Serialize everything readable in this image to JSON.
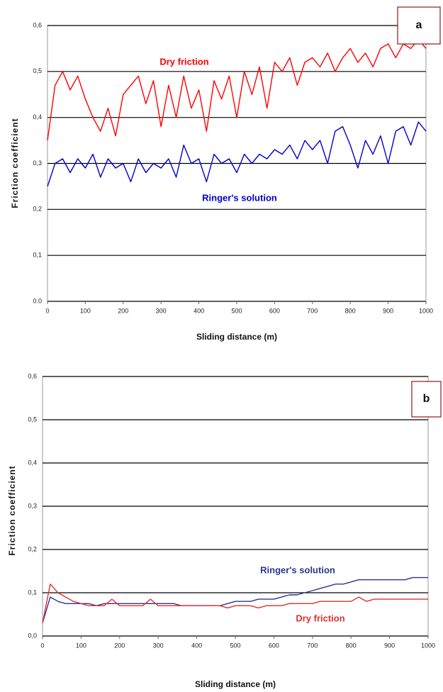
{
  "chart_data": [
    {
      "type": "line",
      "panel_label": "a",
      "xlabel": "Sliding distance (m)",
      "ylabel": "Friction coefficient",
      "xlim": [
        0,
        1000
      ],
      "xticks": [
        0,
        100,
        200,
        300,
        400,
        500,
        600,
        700,
        800,
        900,
        1000
      ],
      "ylim": [
        0,
        0.6
      ],
      "yticks": [
        {
          "value": 0,
          "label": "0.0"
        },
        {
          "value": 0.1,
          "label": "0,1"
        },
        {
          "value": 0.2,
          "label": "0,2"
        },
        {
          "value": 0.3,
          "label": "0,3"
        },
        {
          "value": 0.4,
          "label": "0,4"
        },
        {
          "value": 0.5,
          "label": "0,5"
        },
        {
          "value": 0.6,
          "label": "0,6"
        }
      ],
      "grid": true,
      "x": [
        0,
        20,
        40,
        60,
        80,
        100,
        120,
        140,
        160,
        180,
        200,
        220,
        240,
        260,
        280,
        300,
        320,
        340,
        360,
        380,
        400,
        420,
        440,
        460,
        480,
        500,
        520,
        540,
        560,
        580,
        600,
        620,
        640,
        660,
        680,
        700,
        720,
        740,
        760,
        780,
        800,
        820,
        840,
        860,
        880,
        900,
        920,
        940,
        960,
        980,
        1000
      ],
      "series": [
        {
          "name": "Dry friction",
          "color": "#ff0000",
          "values": [
            0.35,
            0.47,
            0.5,
            0.46,
            0.49,
            0.44,
            0.4,
            0.37,
            0.42,
            0.36,
            0.45,
            0.47,
            0.49,
            0.43,
            0.48,
            0.38,
            0.47,
            0.4,
            0.49,
            0.42,
            0.46,
            0.37,
            0.48,
            0.44,
            0.49,
            0.4,
            0.5,
            0.45,
            0.51,
            0.42,
            0.52,
            0.5,
            0.53,
            0.47,
            0.52,
            0.53,
            0.51,
            0.54,
            0.5,
            0.53,
            0.55,
            0.52,
            0.54,
            0.51,
            0.55,
            0.56,
            0.53,
            0.56,
            0.55,
            0.57,
            0.55
          ]
        },
        {
          "name": "Ringer's solution",
          "color": "#0000cc",
          "values": [
            0.25,
            0.3,
            0.31,
            0.28,
            0.31,
            0.29,
            0.32,
            0.27,
            0.31,
            0.29,
            0.3,
            0.26,
            0.31,
            0.28,
            0.3,
            0.29,
            0.31,
            0.27,
            0.34,
            0.3,
            0.31,
            0.26,
            0.32,
            0.3,
            0.31,
            0.28,
            0.32,
            0.3,
            0.32,
            0.31,
            0.33,
            0.32,
            0.34,
            0.31,
            0.35,
            0.33,
            0.35,
            0.3,
            0.37,
            0.38,
            0.34,
            0.29,
            0.35,
            0.32,
            0.36,
            0.3,
            0.37,
            0.38,
            0.34,
            0.39,
            0.37
          ]
        }
      ]
    },
    {
      "type": "line",
      "panel_label": "b",
      "xlabel": "Sliding distance (m)",
      "ylabel": "Friction coefficient",
      "xlim": [
        0,
        1000
      ],
      "xticks": [
        0,
        100,
        200,
        300,
        400,
        500,
        600,
        700,
        800,
        900,
        1000
      ],
      "ylim": [
        0,
        0.6
      ],
      "yticks": [
        {
          "value": 0,
          "label": "0,0"
        },
        {
          "value": 0.1,
          "label": "0,1"
        },
        {
          "value": 0.2,
          "label": "0,2"
        },
        {
          "value": 0.3,
          "label": "0,3"
        },
        {
          "value": 0.4,
          "label": "0,4"
        },
        {
          "value": 0.5,
          "label": "0,5"
        },
        {
          "value": 0.6,
          "label": "0,6"
        }
      ],
      "grid": true,
      "x": [
        0,
        20,
        40,
        60,
        80,
        100,
        120,
        140,
        160,
        180,
        200,
        220,
        240,
        260,
        280,
        300,
        320,
        340,
        360,
        380,
        400,
        420,
        440,
        460,
        480,
        500,
        520,
        540,
        560,
        580,
        600,
        620,
        640,
        660,
        680,
        700,
        720,
        740,
        760,
        780,
        800,
        820,
        840,
        860,
        880,
        900,
        920,
        940,
        960,
        980,
        1000
      ],
      "series": [
        {
          "name": "Ringer's solution",
          "color": "#2a3594",
          "values": [
            0.03,
            0.09,
            0.08,
            0.075,
            0.075,
            0.075,
            0.075,
            0.07,
            0.075,
            0.075,
            0.075,
            0.075,
            0.075,
            0.075,
            0.075,
            0.075,
            0.075,
            0.075,
            0.07,
            0.07,
            0.07,
            0.07,
            0.07,
            0.07,
            0.075,
            0.08,
            0.08,
            0.08,
            0.085,
            0.085,
            0.085,
            0.09,
            0.095,
            0.095,
            0.1,
            0.105,
            0.11,
            0.115,
            0.12,
            0.12,
            0.125,
            0.13,
            0.13,
            0.13,
            0.13,
            0.13,
            0.13,
            0.13,
            0.135,
            0.135,
            0.135
          ]
        },
        {
          "name": "Dry friction",
          "color": "#e0302e",
          "values": [
            0.03,
            0.12,
            0.1,
            0.09,
            0.08,
            0.075,
            0.07,
            0.07,
            0.07,
            0.085,
            0.07,
            0.07,
            0.07,
            0.07,
            0.085,
            0.07,
            0.07,
            0.07,
            0.07,
            0.07,
            0.07,
            0.07,
            0.07,
            0.07,
            0.065,
            0.07,
            0.07,
            0.07,
            0.065,
            0.07,
            0.07,
            0.07,
            0.075,
            0.075,
            0.075,
            0.075,
            0.08,
            0.08,
            0.08,
            0.08,
            0.08,
            0.09,
            0.08,
            0.085,
            0.085,
            0.085,
            0.085,
            0.085,
            0.085,
            0.085,
            0.085
          ]
        }
      ]
    }
  ]
}
